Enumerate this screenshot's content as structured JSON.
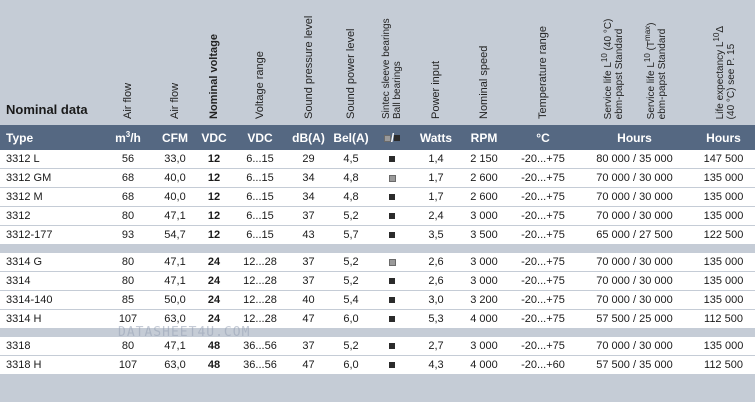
{
  "headers": {
    "nominal_data": "Nominal data",
    "air_flow_1": "Air flow",
    "air_flow_2": "Air flow",
    "nominal_voltage": "Nominal voltage",
    "voltage_range": "Voltage range",
    "sound_pressure": "Sound pressure level",
    "sound_power": "Sound power level",
    "bearings_1": "Sintec sleeve bearings",
    "bearings_2": "Ball bearings",
    "power_input": "Power input",
    "nominal_speed": "Nominal speed",
    "temperature_range": "Temperature range",
    "service_life_1a": "Service life L",
    "service_life_1b": "10",
    "service_life_1c": " (40 °C)",
    "service_life_1d": "ebm-papst Standard",
    "service_life_2a": "Service life L",
    "service_life_2b": "10",
    "service_life_2c": " (T",
    "service_life_2d": "max",
    "service_life_2e": ")",
    "service_life_2f": "ebm-papst Standard",
    "life_exp_a": "Life expectancy L",
    "life_exp_b": "10",
    "life_exp_c": "Δ",
    "life_exp_d": "(40 °C)  see P. 15"
  },
  "units": {
    "type": "Type",
    "m3h_a": "m",
    "m3h_b": "3",
    "m3h_c": "/h",
    "cfm": "CFM",
    "vdc1": "VDC",
    "vdc2": "VDC",
    "dba": "dB(A)",
    "bela": "Bel(A)",
    "bearing_sep": "/",
    "watts": "Watts",
    "rpm": "RPM",
    "celsius": "°C",
    "hours1": "Hours",
    "hours2": "Hours"
  },
  "groups": [
    {
      "rows": [
        {
          "type": "3312 L",
          "m3h": "56",
          "cfm": "33,0",
          "vdc": "12",
          "vrange": "6...15",
          "dba": "29",
          "bela": "4,5",
          "bearing": "dark",
          "watts": "1,4",
          "rpm": "2 150",
          "temp": "-20...+75",
          "service": "80 000 / 35 000",
          "life": "147 500"
        },
        {
          "type": "3312 GM",
          "m3h": "68",
          "cfm": "40,0",
          "vdc": "12",
          "vrange": "6...15",
          "dba": "34",
          "bela": "4,8",
          "bearing": "light",
          "watts": "1,7",
          "rpm": "2 600",
          "temp": "-20...+75",
          "service": "70 000 / 30 000",
          "life": "135 000"
        },
        {
          "type": "3312 M",
          "m3h": "68",
          "cfm": "40,0",
          "vdc": "12",
          "vrange": "6...15",
          "dba": "34",
          "bela": "4,8",
          "bearing": "dark",
          "watts": "1,7",
          "rpm": "2 600",
          "temp": "-20...+75",
          "service": "70 000 / 30 000",
          "life": "135 000"
        },
        {
          "type": "3312",
          "m3h": "80",
          "cfm": "47,1",
          "vdc": "12",
          "vrange": "6...15",
          "dba": "37",
          "bela": "5,2",
          "bearing": "dark",
          "watts": "2,4",
          "rpm": "3 000",
          "temp": "-20...+75",
          "service": "70 000 / 30 000",
          "life": "135 000"
        },
        {
          "type": "3312-177",
          "m3h": "93",
          "cfm": "54,7",
          "vdc": "12",
          "vrange": "6...15",
          "dba": "43",
          "bela": "5,7",
          "bearing": "dark",
          "watts": "3,5",
          "rpm": "3 500",
          "temp": "-20...+75",
          "service": "65 000 / 27 500",
          "life": "122 500"
        }
      ]
    },
    {
      "rows": [
        {
          "type": "3314 G",
          "m3h": "80",
          "cfm": "47,1",
          "vdc": "24",
          "vrange": "12...28",
          "dba": "37",
          "bela": "5,2",
          "bearing": "light",
          "watts": "2,6",
          "rpm": "3 000",
          "temp": "-20...+75",
          "service": "70 000 / 30 000",
          "life": "135 000"
        },
        {
          "type": "3314",
          "m3h": "80",
          "cfm": "47,1",
          "vdc": "24",
          "vrange": "12...28",
          "dba": "37",
          "bela": "5,2",
          "bearing": "dark",
          "watts": "2,6",
          "rpm": "3 000",
          "temp": "-20...+75",
          "service": "70 000 / 30 000",
          "life": "135 000"
        },
        {
          "type": "3314-140",
          "m3h": "85",
          "cfm": "50,0",
          "vdc": "24",
          "vrange": "12...28",
          "dba": "40",
          "bela": "5,4",
          "bearing": "dark",
          "watts": "3,0",
          "rpm": "3 200",
          "temp": "-20...+75",
          "service": "70 000 / 30 000",
          "life": "135 000"
        },
        {
          "type": "3314 H",
          "m3h": "107",
          "cfm": "63,0",
          "vdc": "24",
          "vrange": "12...28",
          "dba": "47",
          "bela": "6,0",
          "bearing": "dark",
          "watts": "5,3",
          "rpm": "4 000",
          "temp": "-20...+75",
          "service": "57 500 / 25 000",
          "life": "112 500"
        }
      ]
    },
    {
      "rows": [
        {
          "type": "3318",
          "m3h": "80",
          "cfm": "47,1",
          "vdc": "48",
          "vrange": "36...56",
          "dba": "37",
          "bela": "5,2",
          "bearing": "dark",
          "watts": "2,7",
          "rpm": "3 000",
          "temp": "-20...+75",
          "service": "70 000 / 30 000",
          "life": "135 000"
        },
        {
          "type": "3318 H",
          "m3h": "107",
          "cfm": "63,0",
          "vdc": "48",
          "vrange": "36...56",
          "dba": "47",
          "bela": "6,0",
          "bearing": "dark",
          "watts": "4,3",
          "rpm": "4 000",
          "temp": "-20...+60",
          "service": "57 500 / 35 000",
          "life": "112 500"
        }
      ]
    }
  ],
  "watermark": "DATASHEET4U.COM",
  "colors": {
    "header_bar": "#556882",
    "background": "#c5ccd6",
    "row": "#ffffff"
  }
}
